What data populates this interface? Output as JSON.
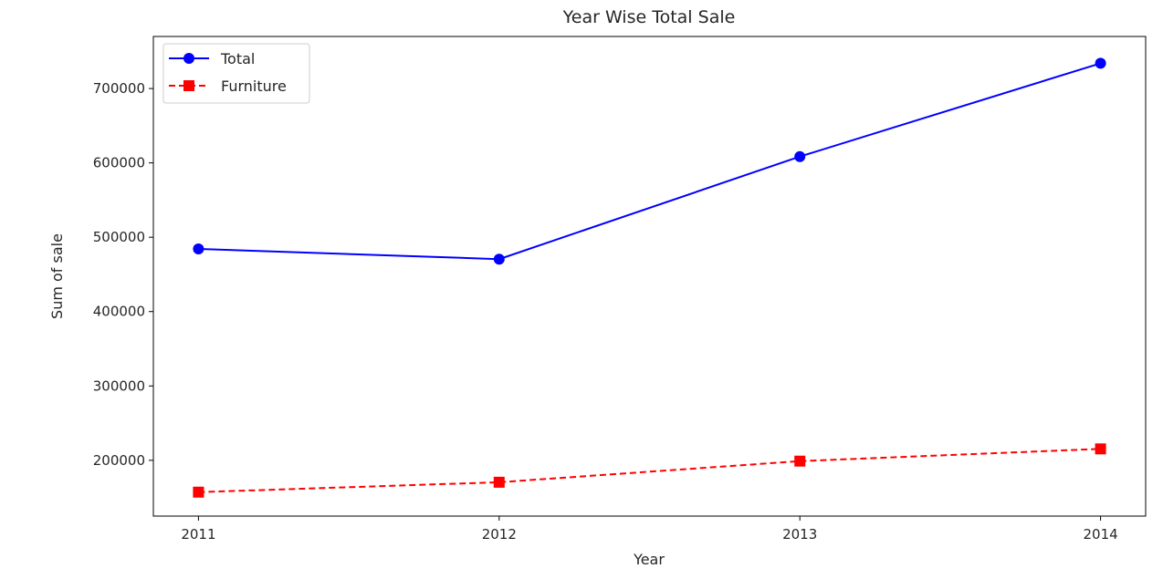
{
  "chart_data": {
    "type": "line",
    "title": "Year Wise Total Sale",
    "xlabel": "Year",
    "ylabel": "Sum of sale",
    "categories": [
      "2011",
      "2012",
      "2013",
      "2014"
    ],
    "x": [
      2011,
      2012,
      2013,
      2014
    ],
    "xlim": [
      2010.85,
      2014.15
    ],
    "ylim": [
      125000,
      770000
    ],
    "yticks": [
      200000,
      300000,
      400000,
      500000,
      600000,
      700000
    ],
    "ytick_labels": [
      "200000",
      "300000",
      "400000",
      "500000",
      "600000",
      "700000"
    ],
    "grid": false,
    "legend_position": "upper-left",
    "series": [
      {
        "name": "Total",
        "values": [
          484247,
          470533,
          608474,
          733947
        ],
        "color": "#0000ff",
        "line_style": "solid",
        "marker": "circle"
      },
      {
        "name": "Furniture",
        "values": [
          157193,
          170518,
          198901,
          215387
        ],
        "color": "#ff0000",
        "line_style": "dashed",
        "marker": "square"
      }
    ]
  }
}
